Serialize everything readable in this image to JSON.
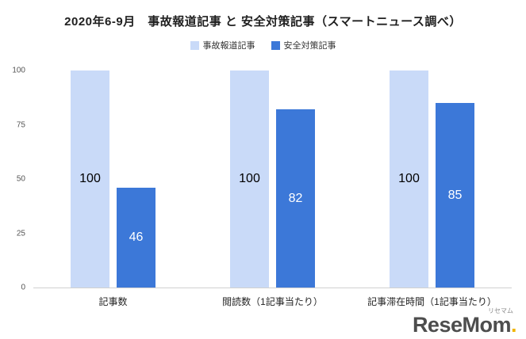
{
  "title": "2020年6-9月　事故報道記事 と 安全対策記事（スマートニュース調べ）",
  "chart_data": {
    "type": "bar",
    "title": "2020年6-9月　事故報道記事 と 安全対策記事（スマートニュース調べ）",
    "categories": [
      "記事数",
      "閲読数（1記事当たり）",
      "記事滞在時間（1記事当たり）"
    ],
    "series": [
      {
        "name": "事故報道記事",
        "color": "#c9daf8",
        "label_color": "#000000",
        "values": [
          100,
          100,
          100
        ]
      },
      {
        "name": "安全対策記事",
        "color": "#3c78d8",
        "label_color": "#ffffff",
        "values": [
          46,
          82,
          85
        ]
      }
    ],
    "xlabel": "",
    "ylabel": "",
    "ylim": [
      0,
      100
    ],
    "yticks": [
      0,
      25,
      50,
      75,
      100
    ],
    "grid": false,
    "legend_position": "top"
  },
  "watermark": {
    "brand": "ReseMom",
    "dot": ".",
    "ruby": "リセマム"
  }
}
